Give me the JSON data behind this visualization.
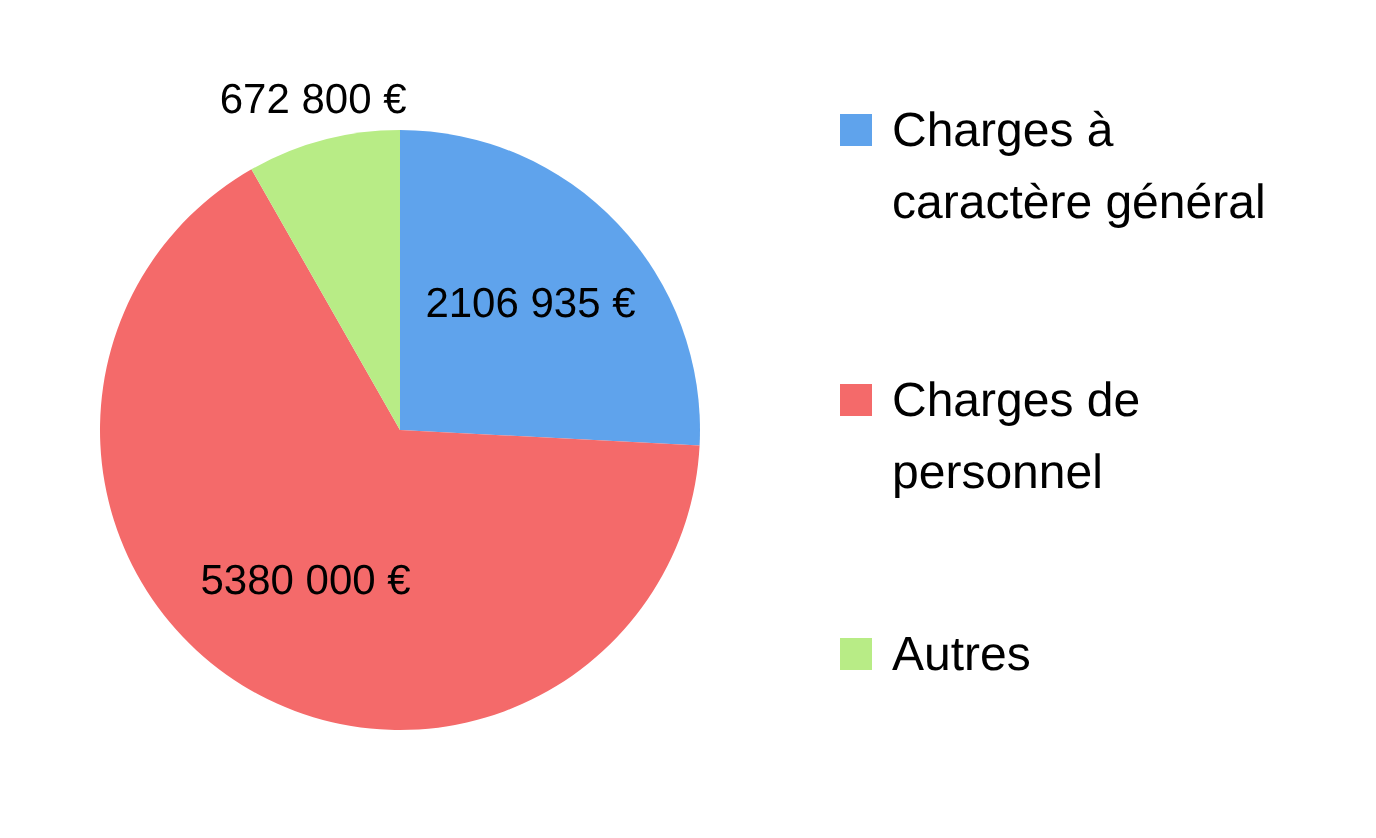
{
  "chart_data": {
    "type": "pie",
    "categories": [
      "Charges à caractère général",
      "Charges de personnel",
      "Autres"
    ],
    "values": [
      2106935,
      5380000,
      672800
    ],
    "colors": [
      "#5fa3ec",
      "#f46a6a",
      "#b8ec86"
    ],
    "value_labels": [
      "2106 935 €",
      "5380 000 €",
      "672 800 €"
    ],
    "legend": "right"
  }
}
